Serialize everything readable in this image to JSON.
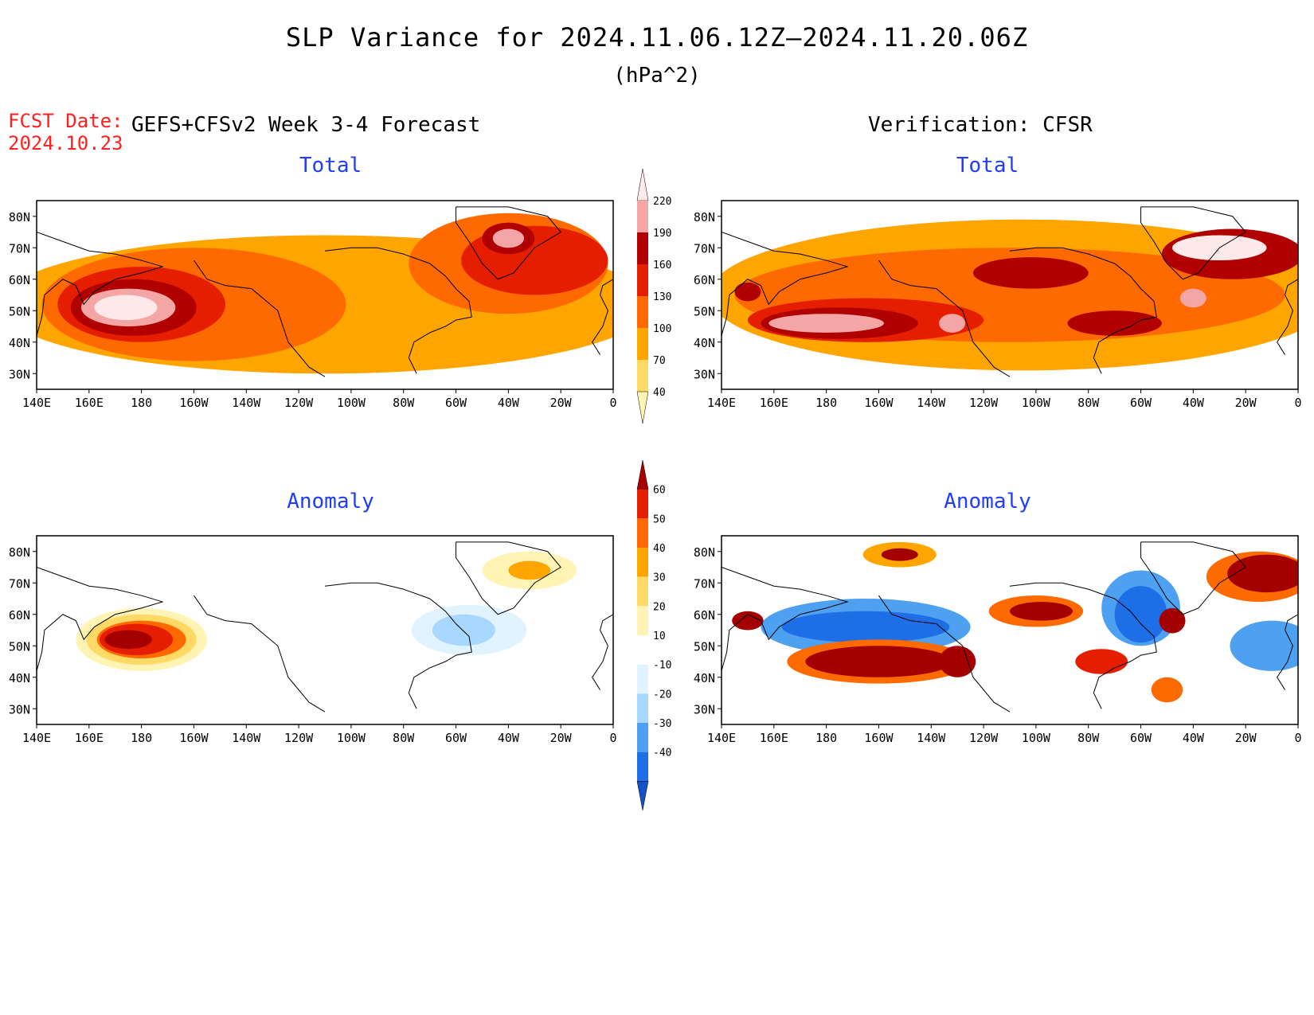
{
  "title": "SLP Variance for 2024.11.06.12Z–2024.11.20.06Z",
  "units": "(hPa^2)",
  "fcst_date_label": "FCST Date:",
  "fcst_date_value": "2024.10.23",
  "left_header": "GEFS+CFSv2 Week 3-4 Forecast",
  "right_header": "Verification: CFSR",
  "panels": [
    {
      "id": "fcst-total",
      "title": "Total",
      "field": "total"
    },
    {
      "id": "verif-total",
      "title": "Total",
      "field": "total"
    },
    {
      "id": "fcst-anomaly",
      "title": "Anomaly",
      "field": "anomaly"
    },
    {
      "id": "verif-anomaly",
      "title": "Anomaly",
      "field": "anomaly"
    }
  ],
  "lat_ticks": [
    "80N",
    "70N",
    "60N",
    "50N",
    "40N",
    "30N"
  ],
  "lat_values": [
    80,
    70,
    60,
    50,
    40,
    30
  ],
  "lat_range": [
    25,
    85
  ],
  "lon_ticks": [
    "140E",
    "160E",
    "180",
    "160W",
    "140W",
    "120W",
    "100W",
    "80W",
    "60W",
    "40W",
    "20W",
    "0"
  ],
  "lon_values": [
    140,
    160,
    180,
    200,
    220,
    240,
    260,
    280,
    300,
    320,
    340,
    360
  ],
  "total_colorbar": {
    "levels": [
      "40",
      "70",
      "100",
      "130",
      "160",
      "190",
      "220"
    ],
    "colors": [
      "#fff4b3",
      "#ffd966",
      "#ffa500",
      "#ff6a00",
      "#e61e00",
      "#b00000",
      "#f4a6a6",
      "#fde8ea"
    ]
  },
  "anomaly_colorbar": {
    "levels": [
      "60",
      "50",
      "40",
      "30",
      "20",
      "10",
      "-10",
      "-20",
      "-30",
      "-40"
    ],
    "colors": [
      "#a50000",
      "#e61e00",
      "#ff6a00",
      "#ffa500",
      "#ffd966",
      "#fff4b3",
      "#ffffff",
      "#e0f3ff",
      "#a8d8ff",
      "#4ea0f0",
      "#1e6ee6",
      "#1450c8"
    ]
  },
  "chart_data": [
    {
      "type": "heatmap",
      "title": "Total",
      "panel": "GEFS+CFSv2 Week 3-4 Forecast",
      "units": "hPa^2",
      "features": [
        {
          "lon": 175,
          "lat": 51,
          "value": 230,
          "note": "North Pacific maximum"
        },
        {
          "lon": 320,
          "lat": 73,
          "value": 200,
          "note": "Greenland/Iceland maximum"
        },
        {
          "lon": 340,
          "lat": 62,
          "value": 140
        },
        {
          "lon": 300,
          "lat": 50,
          "value": 120
        }
      ]
    },
    {
      "type": "heatmap",
      "title": "Total",
      "panel": "Verification: CFSR",
      "units": "hPa^2",
      "features": [
        {
          "lon": 180,
          "lat": 47,
          "value": 220,
          "note": "North Pacific maximum"
        },
        {
          "lon": 228,
          "lat": 46,
          "value": 200
        },
        {
          "lon": 325,
          "lat": 71,
          "value": 220,
          "note": "North Atlantic maximum"
        },
        {
          "lon": 350,
          "lat": 67,
          "value": 200
        },
        {
          "lon": 320,
          "lat": 54,
          "value": 200
        },
        {
          "lon": 258,
          "lat": 62,
          "value": 170
        },
        {
          "lon": 290,
          "lat": 46,
          "value": 170
        },
        {
          "lon": 150,
          "lat": 56,
          "value": 170
        }
      ]
    },
    {
      "type": "heatmap",
      "title": "Anomaly",
      "panel": "GEFS+CFSv2 Week 3-4 Forecast",
      "units": "hPa^2",
      "features": [
        {
          "lon": 180,
          "lat": 52,
          "value": 65,
          "note": "positive anomaly"
        },
        {
          "lon": 328,
          "lat": 74,
          "value": 35
        },
        {
          "lon": 305,
          "lat": 55,
          "value": -25,
          "note": "negative anomaly"
        }
      ]
    },
    {
      "type": "heatmap",
      "title": "Anomaly",
      "panel": "Verification: CFSR",
      "units": "hPa^2",
      "features": [
        {
          "lon": 190,
          "lat": 44,
          "value": 65
        },
        {
          "lon": 230,
          "lat": 44,
          "value": 60
        },
        {
          "lon": 195,
          "lat": 56,
          "value": -45,
          "note": "negative band"
        },
        {
          "lon": 208,
          "lat": 79,
          "value": 60
        },
        {
          "lon": 260,
          "lat": 60,
          "value": 60
        },
        {
          "lon": 150,
          "lat": 58,
          "value": 60
        },
        {
          "lon": 300,
          "lat": 60,
          "value": -45
        },
        {
          "lon": 345,
          "lat": 72,
          "value": 65
        },
        {
          "lon": 350,
          "lat": 50,
          "value": -40
        },
        {
          "lon": 312,
          "lat": 58,
          "value": 60
        },
        {
          "lon": 285,
          "lat": 45,
          "value": 50
        }
      ]
    }
  ]
}
